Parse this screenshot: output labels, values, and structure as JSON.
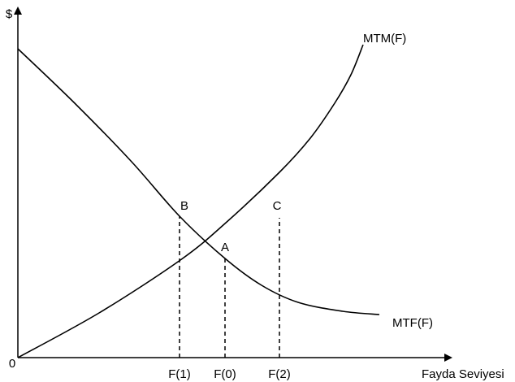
{
  "chart_data": {
    "type": "line",
    "title": "",
    "xlabel": "Fayda Seviyesi",
    "ylabel": "$",
    "origin_label": "0",
    "line_color": "#000000",
    "series": [
      {
        "name": "MTM(F)",
        "points": [
          [
            0,
            0
          ],
          [
            100,
            55
          ],
          [
            200,
            120
          ],
          [
            255,
            165
          ],
          [
            322,
            228
          ],
          [
            360,
            270
          ],
          [
            390,
            313
          ],
          [
            410,
            348
          ],
          [
            425,
            385
          ]
        ]
      },
      {
        "name": "MTF(F)",
        "points": [
          [
            0,
            380
          ],
          [
            70,
            313
          ],
          [
            140,
            241
          ],
          [
            199,
            174
          ],
          [
            255,
            122
          ],
          [
            300,
            89
          ],
          [
            345,
            68
          ],
          [
            400,
            57
          ],
          [
            445,
            53
          ]
        ]
      }
    ],
    "points": [
      {
        "label": "A",
        "x": 255,
        "y": 122
      },
      {
        "label": "B",
        "x": 199,
        "y": 174
      },
      {
        "label": "C",
        "x": 322,
        "y": 172
      }
    ],
    "x_ticks": [
      {
        "label": "F(1)",
        "x": 199
      },
      {
        "label": "F(0)",
        "x": 255
      },
      {
        "label": "F(2)",
        "x": 322
      }
    ],
    "guides": [
      {
        "x": 199,
        "from": 0,
        "to": 174
      },
      {
        "x": 255,
        "from": 0,
        "to": 122
      },
      {
        "x": 322,
        "from": 0,
        "to": 172
      }
    ]
  }
}
